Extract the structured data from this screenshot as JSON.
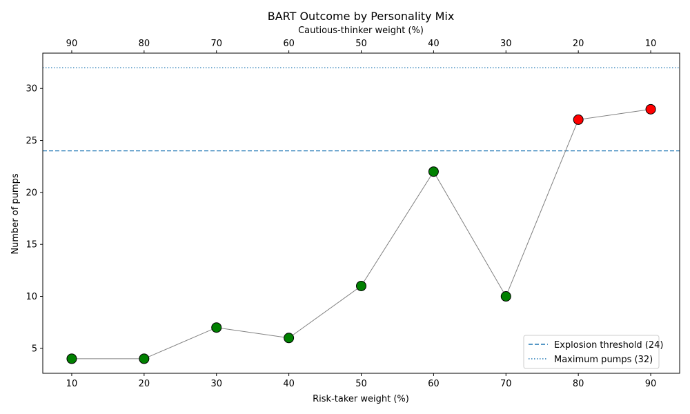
{
  "chart_data": {
    "type": "scatter",
    "title": "BART Outcome by Personality Mix",
    "xlabel": "Risk-taker weight (%)",
    "ylabel": "Number of pumps",
    "secondary_xlabel": "Cautious-thinker weight (%)",
    "x": [
      10,
      20,
      30,
      40,
      50,
      60,
      70,
      80,
      90
    ],
    "secondary_x": [
      90,
      80,
      70,
      60,
      50,
      40,
      30,
      20,
      10
    ],
    "y": [
      4,
      4,
      7,
      6,
      11,
      22,
      10,
      27,
      28
    ],
    "point_colors": [
      "#008000",
      "#008000",
      "#008000",
      "#008000",
      "#008000",
      "#008000",
      "#008000",
      "#ff0000",
      "#ff0000"
    ],
    "line_color": "#808080",
    "xlim": [
      6,
      94
    ],
    "ylim": [
      2.6,
      33.4
    ],
    "yticks": [
      5,
      10,
      15,
      20,
      25,
      30
    ],
    "xticks": [
      10,
      20,
      30,
      40,
      50,
      60,
      70,
      80,
      90
    ],
    "hlines": [
      {
        "value": 24,
        "style": "dashed",
        "color": "#1f77b4",
        "label": "Explosion threshold (24)"
      },
      {
        "value": 32,
        "style": "dotted",
        "color": "#1f77b4",
        "label": "Maximum pumps (32)"
      }
    ],
    "legend_position": "bottom-right",
    "grid": false
  }
}
